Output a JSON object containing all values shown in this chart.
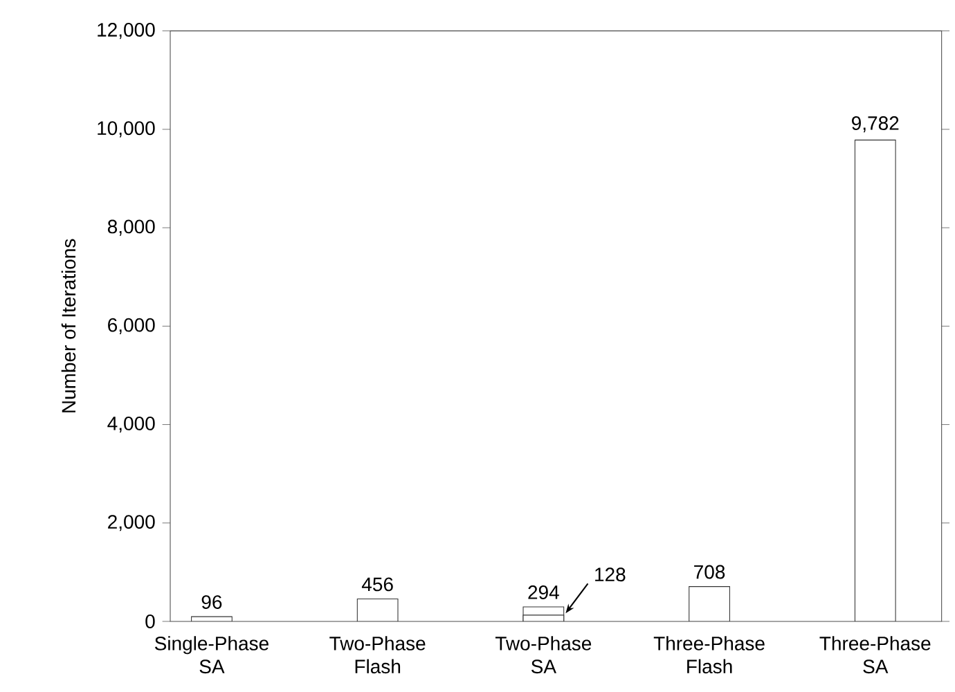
{
  "chart_data": {
    "type": "bar",
    "ylabel": "Number of Iterations",
    "categories": [
      "Single-Phase SA",
      "Two-Phase Flash",
      "Two-Phase SA",
      "Three-Phase Flash",
      "Three-Phase SA"
    ],
    "series": [
      {
        "color": "#ffffff",
        "values": [
          96,
          456,
          294,
          708,
          9782
        ],
        "value_labels": [
          "96",
          "456",
          "294",
          "708",
          "9,782"
        ]
      },
      {
        "color": "#ffffff",
        "values": [
          null,
          null,
          128,
          null,
          null
        ],
        "value_labels": [
          null,
          null,
          "128",
          null,
          null
        ]
      }
    ],
    "ylim": [
      0,
      12000
    ],
    "yticks": [
      0,
      {
        "value": 2000,
        "label": "2,000"
      },
      {
        "value": 4000,
        "label": "4,000"
      },
      {
        "value": 6000,
        "label": "6,000"
      },
      {
        "value": 8000,
        "label": "8,000"
      },
      {
        "value": 10000,
        "label": "10,000"
      },
      {
        "value": 12000,
        "label": "12,000"
      }
    ],
    "grid": false
  }
}
